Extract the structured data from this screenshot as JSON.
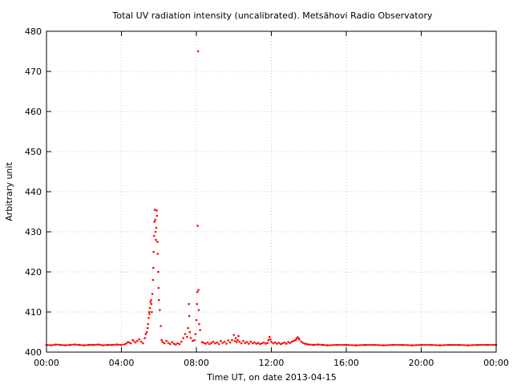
{
  "chart_data": {
    "type": "scatter",
    "title": "Total UV radiation intensity (uncalibrated). Metsähovi Radio Observatory",
    "xlabel": "Time UT, on date 2013-04-15",
    "ylabel": "Arbitrary unit",
    "xlim": [
      0,
      24
    ],
    "ylim": [
      400,
      480
    ],
    "x_ticks": [
      0,
      4,
      8,
      12,
      16,
      20,
      24
    ],
    "x_tick_labels": [
      "00:00",
      "04:00",
      "08:00",
      "12:00",
      "16:00",
      "20:00",
      "00:00"
    ],
    "y_ticks": [
      400,
      410,
      420,
      430,
      440,
      450,
      460,
      470,
      480
    ],
    "y_tick_labels": [
      "400",
      "410",
      "420",
      "430",
      "440",
      "450",
      "460",
      "470",
      "480"
    ],
    "grid": true,
    "legend": "none",
    "series": [
      {
        "color": "#ff0000",
        "x_unit": "hours UT",
        "points": [
          [
            0.0,
            401.8
          ],
          [
            0.25,
            401.7
          ],
          [
            0.5,
            401.9
          ],
          [
            0.75,
            401.8
          ],
          [
            1.0,
            401.7
          ],
          [
            1.25,
            401.8
          ],
          [
            1.5,
            401.9
          ],
          [
            1.75,
            401.8
          ],
          [
            2.0,
            401.7
          ],
          [
            2.25,
            401.8
          ],
          [
            2.5,
            401.8
          ],
          [
            2.75,
            401.9
          ],
          [
            3.0,
            401.7
          ],
          [
            3.25,
            401.8
          ],
          [
            3.5,
            401.8
          ],
          [
            3.75,
            401.9
          ],
          [
            4.0,
            401.8
          ],
          [
            4.2,
            402.0
          ],
          [
            4.35,
            402.5
          ],
          [
            4.5,
            402.2
          ],
          [
            4.6,
            403.0
          ],
          [
            4.75,
            402.4
          ],
          [
            4.85,
            402.8
          ],
          [
            4.95,
            403.2
          ],
          [
            5.05,
            402.6
          ],
          [
            5.15,
            402.2
          ],
          [
            5.25,
            403.5
          ],
          [
            5.3,
            404.5
          ],
          [
            5.35,
            405.0
          ],
          [
            5.4,
            406.0
          ],
          [
            5.42,
            407.0
          ],
          [
            5.45,
            408.5
          ],
          [
            5.48,
            410.0
          ],
          [
            5.5,
            409.5
          ],
          [
            5.52,
            411.0
          ],
          [
            5.55,
            412.5
          ],
          [
            5.58,
            413.0
          ],
          [
            5.6,
            412.0
          ],
          [
            5.62,
            410.0
          ],
          [
            5.65,
            414.5
          ],
          [
            5.68,
            418.0
          ],
          [
            5.7,
            421.0
          ],
          [
            5.72,
            425.0
          ],
          [
            5.74,
            429.0
          ],
          [
            5.76,
            432.5
          ],
          [
            5.78,
            435.5
          ],
          [
            5.8,
            433.0
          ],
          [
            5.82,
            430.0
          ],
          [
            5.84,
            428.0
          ],
          [
            5.86,
            431.0
          ],
          [
            5.88,
            435.3
          ],
          [
            5.9,
            434.0
          ],
          [
            5.92,
            427.5
          ],
          [
            5.94,
            424.5
          ],
          [
            5.96,
            420.0
          ],
          [
            5.98,
            416.0
          ],
          [
            6.0,
            413.0
          ],
          [
            6.05,
            410.5
          ],
          [
            6.1,
            406.5
          ],
          [
            6.15,
            403.0
          ],
          [
            6.2,
            402.5
          ],
          [
            6.3,
            402.2
          ],
          [
            6.4,
            402.8
          ],
          [
            6.5,
            402.3
          ],
          [
            6.6,
            402.0
          ],
          [
            6.7,
            402.5
          ],
          [
            6.8,
            402.1
          ],
          [
            6.9,
            401.9
          ],
          [
            7.0,
            402.2
          ],
          [
            7.1,
            402.0
          ],
          [
            7.2,
            402.6
          ],
          [
            7.3,
            403.5
          ],
          [
            7.4,
            404.5
          ],
          [
            7.5,
            403.8
          ],
          [
            7.55,
            406.0
          ],
          [
            7.6,
            412.0
          ],
          [
            7.62,
            409.0
          ],
          [
            7.65,
            405.0
          ],
          [
            7.7,
            403.5
          ],
          [
            7.8,
            402.8
          ],
          [
            7.9,
            403.0
          ],
          [
            7.95,
            404.5
          ],
          [
            8.0,
            408.0
          ],
          [
            8.03,
            412.0
          ],
          [
            8.05,
            415.0
          ],
          [
            8.07,
            431.5
          ],
          [
            8.09,
            475.0
          ],
          [
            8.11,
            415.5
          ],
          [
            8.13,
            410.5
          ],
          [
            8.15,
            407.0
          ],
          [
            8.2,
            405.5
          ],
          [
            8.3,
            402.5
          ],
          [
            8.4,
            402.3
          ],
          [
            8.5,
            402.1
          ],
          [
            8.6,
            402.4
          ],
          [
            8.7,
            402.0
          ],
          [
            8.8,
            402.3
          ],
          [
            8.9,
            402.6
          ],
          [
            9.0,
            402.2
          ],
          [
            9.1,
            402.4
          ],
          [
            9.2,
            402.0
          ],
          [
            9.3,
            402.8
          ],
          [
            9.4,
            402.3
          ],
          [
            9.5,
            402.6
          ],
          [
            9.6,
            402.1
          ],
          [
            9.7,
            402.9
          ],
          [
            9.8,
            402.4
          ],
          [
            9.9,
            403.0
          ],
          [
            10.0,
            404.3
          ],
          [
            10.05,
            402.8
          ],
          [
            10.1,
            403.5
          ],
          [
            10.15,
            402.5
          ],
          [
            10.2,
            403.0
          ],
          [
            10.25,
            404.0
          ],
          [
            10.3,
            402.6
          ],
          [
            10.4,
            402.2
          ],
          [
            10.5,
            402.8
          ],
          [
            10.6,
            402.3
          ],
          [
            10.7,
            402.5
          ],
          [
            10.8,
            402.1
          ],
          [
            10.9,
            402.6
          ],
          [
            11.0,
            402.2
          ],
          [
            11.1,
            402.4
          ],
          [
            11.2,
            402.1
          ],
          [
            11.3,
            402.3
          ],
          [
            11.4,
            402.0
          ],
          [
            11.5,
            402.2
          ],
          [
            11.6,
            402.4
          ],
          [
            11.7,
            402.1
          ],
          [
            11.8,
            402.3
          ],
          [
            11.85,
            403.0
          ],
          [
            11.9,
            403.8
          ],
          [
            11.95,
            403.2
          ],
          [
            12.0,
            402.6
          ],
          [
            12.1,
            402.2
          ],
          [
            12.2,
            402.4
          ],
          [
            12.3,
            402.1
          ],
          [
            12.4,
            402.3
          ],
          [
            12.5,
            402.0
          ],
          [
            12.6,
            402.2
          ],
          [
            12.7,
            402.4
          ],
          [
            12.8,
            402.1
          ],
          [
            12.9,
            402.5
          ],
          [
            13.0,
            402.3
          ],
          [
            13.1,
            402.6
          ],
          [
            13.2,
            402.8
          ],
          [
            13.3,
            403.0
          ],
          [
            13.35,
            403.4
          ],
          [
            13.4,
            403.7
          ],
          [
            13.45,
            403.5
          ],
          [
            13.5,
            403.1
          ],
          [
            13.6,
            402.6
          ],
          [
            13.7,
            402.3
          ],
          [
            13.8,
            402.1
          ],
          [
            13.9,
            402.0
          ],
          [
            14.0,
            401.9
          ],
          [
            14.25,
            401.8
          ],
          [
            14.5,
            401.9
          ],
          [
            14.75,
            401.8
          ],
          [
            15.0,
            401.7
          ],
          [
            15.5,
            401.8
          ],
          [
            16.0,
            401.8
          ],
          [
            16.5,
            401.7
          ],
          [
            17.0,
            401.8
          ],
          [
            17.5,
            401.8
          ],
          [
            18.0,
            401.7
          ],
          [
            18.5,
            401.8
          ],
          [
            19.0,
            401.8
          ],
          [
            19.5,
            401.7
          ],
          [
            20.0,
            401.8
          ],
          [
            20.5,
            401.8
          ],
          [
            21.0,
            401.7
          ],
          [
            21.5,
            401.8
          ],
          [
            22.0,
            401.8
          ],
          [
            22.5,
            401.7
          ],
          [
            23.0,
            401.8
          ],
          [
            23.5,
            401.8
          ],
          [
            24.0,
            401.8
          ]
        ]
      }
    ]
  }
}
